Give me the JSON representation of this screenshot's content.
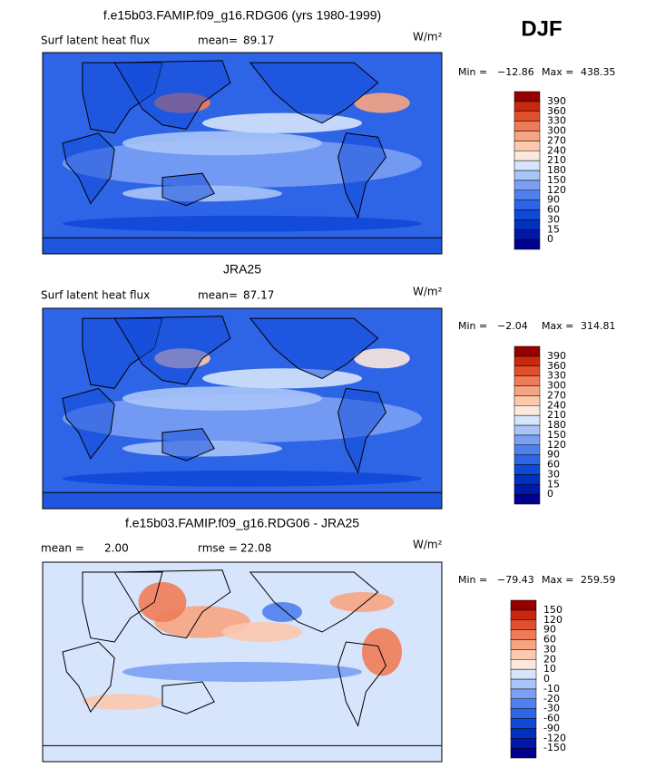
{
  "season": "DJF",
  "panels": [
    {
      "title": "f.e15b03.FAMIP.f09_g16.RDG06 (yrs 1980-1999)",
      "variable": "Surf latent heat flux",
      "stat1_label": "mean=",
      "stat1": "89.17",
      "units": "W/m²",
      "min_label": "Min =",
      "min": "−12.86",
      "max_label": "Max =",
      "max": "438.35",
      "colorbar": {
        "labels": [
          0,
          15,
          30,
          60,
          90,
          120,
          150,
          180,
          210,
          240,
          270,
          300,
          330,
          360,
          390
        ],
        "colors": [
          "#00008f",
          "#0018a8",
          "#0030c0",
          "#1048d8",
          "#2e64e6",
          "#5080ee",
          "#7aa0f4",
          "#a8c4f8",
          "#d6e4fc",
          "#fce8dc",
          "#fcc8ae",
          "#f7a482",
          "#ef7c58",
          "#e0502e",
          "#c8280e",
          "#960000"
        ]
      }
    },
    {
      "title": "JRA25",
      "variable": "Surf latent heat flux",
      "stat1_label": "mean=",
      "stat1": "87.17",
      "units": "W/m²",
      "min_label": "Min =",
      "min": "−2.04",
      "max_label": "Max =",
      "max": "314.81",
      "colorbar": {
        "labels": [
          0,
          15,
          30,
          60,
          90,
          120,
          150,
          180,
          210,
          240,
          270,
          300,
          330,
          360,
          390
        ],
        "colors": [
          "#00008f",
          "#0018a8",
          "#0030c0",
          "#1048d8",
          "#2e64e6",
          "#5080ee",
          "#7aa0f4",
          "#a8c4f8",
          "#d6e4fc",
          "#fce8dc",
          "#fcc8ae",
          "#f7a482",
          "#ef7c58",
          "#e0502e",
          "#c8280e",
          "#960000"
        ]
      }
    },
    {
      "title": "f.e15b03.FAMIP.f09_g16.RDG06 - JRA25",
      "stat1_label": "mean =",
      "stat1": "2.00",
      "stat2_label": "rmse =",
      "stat2": "22.08",
      "units": "W/m²",
      "min_label": "Min =",
      "min": "−79.43",
      "max_label": "Max =",
      "max": "259.59",
      "colorbar": {
        "labels": [
          -150,
          -120,
          -90,
          -60,
          -30,
          -20,
          -10,
          0,
          10,
          20,
          30,
          60,
          90,
          120,
          150
        ],
        "colors": [
          "#00008f",
          "#0018a8",
          "#0030c0",
          "#1048d8",
          "#2e64e6",
          "#5080ee",
          "#7aa0f4",
          "#a8c4f8",
          "#d6e4fc",
          "#fce8dc",
          "#fcc8ae",
          "#f7a482",
          "#ef7c58",
          "#e0502e",
          "#c8280e",
          "#960000"
        ]
      }
    }
  ]
}
